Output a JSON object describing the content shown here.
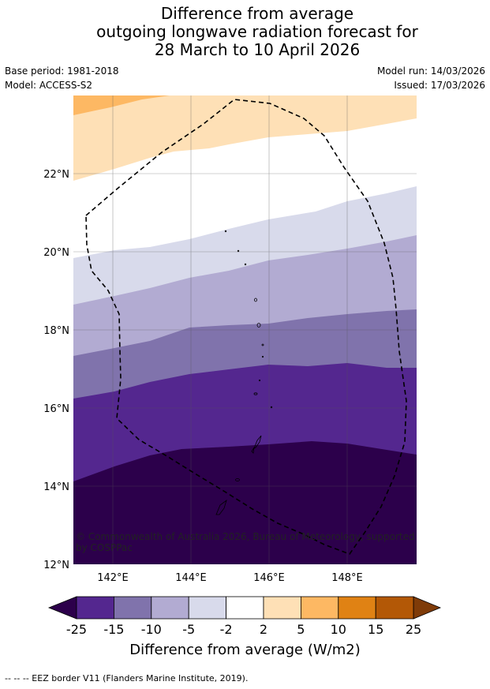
{
  "title_lines": [
    "Difference from average",
    "outgoing longwave radiation forecast for",
    "28 March to 10 April 2026"
  ],
  "meta": {
    "base_period": "Base period: 1981-2018",
    "model": "Model: ACCESS-S2",
    "model_run": "Model run: 14/03/2026",
    "issued": "Issued: 17/03/2026"
  },
  "axes": {
    "lat_ticks": [
      "12°N",
      "14°N",
      "16°N",
      "18°N",
      "20°N",
      "22°N"
    ],
    "lon_ticks": [
      "142°E",
      "144°E",
      "146°E",
      "148°E"
    ],
    "lon_range": [
      141,
      149.8
    ],
    "lat_range": [
      12,
      24
    ]
  },
  "copyright_lines": [
    "© Commonwealth of Australia 2026, Bureau of Meteorology, supported",
    "by COSPPac"
  ],
  "colorbar": {
    "ticks": [
      "-25",
      "-15",
      "-10",
      "-5",
      "-2",
      "2",
      "5",
      "10",
      "15",
      "25"
    ],
    "colors": [
      "#2c004b",
      "#54278f",
      "#8073ac",
      "#b2abd2",
      "#d8daeb",
      "#ffffff",
      "#fee0b6",
      "#fdb863",
      "#e08214",
      "#b35806",
      "#7f3b08"
    ],
    "label": "Difference from average (W/m2)"
  },
  "footnote": "--  --  -- EEZ border V11 (Flanders Marine Institute, 2019).",
  "chart_data": {
    "type": "filled-contour-map",
    "variable": "OLR anomaly (W/m2)",
    "bands": [
      {
        "range": "< -25",
        "region": "south of ~14-15°N"
      },
      {
        "range": "-25 to -15",
        "region": "~15-16.5°N"
      },
      {
        "range": "-15 to -10",
        "region": "~16.5-18°N"
      },
      {
        "range": "-10 to -5",
        "region": "~18-20°N"
      },
      {
        "range": "-5 to -2",
        "region": "~19.5-21.5°N"
      },
      {
        "range": "-2 to 2",
        "region": "~21-22°N"
      },
      {
        "range": "2 to 5",
        "region": "~22-24°N"
      },
      {
        "range": "5 to 10",
        "region": "north-west corner"
      }
    ]
  }
}
